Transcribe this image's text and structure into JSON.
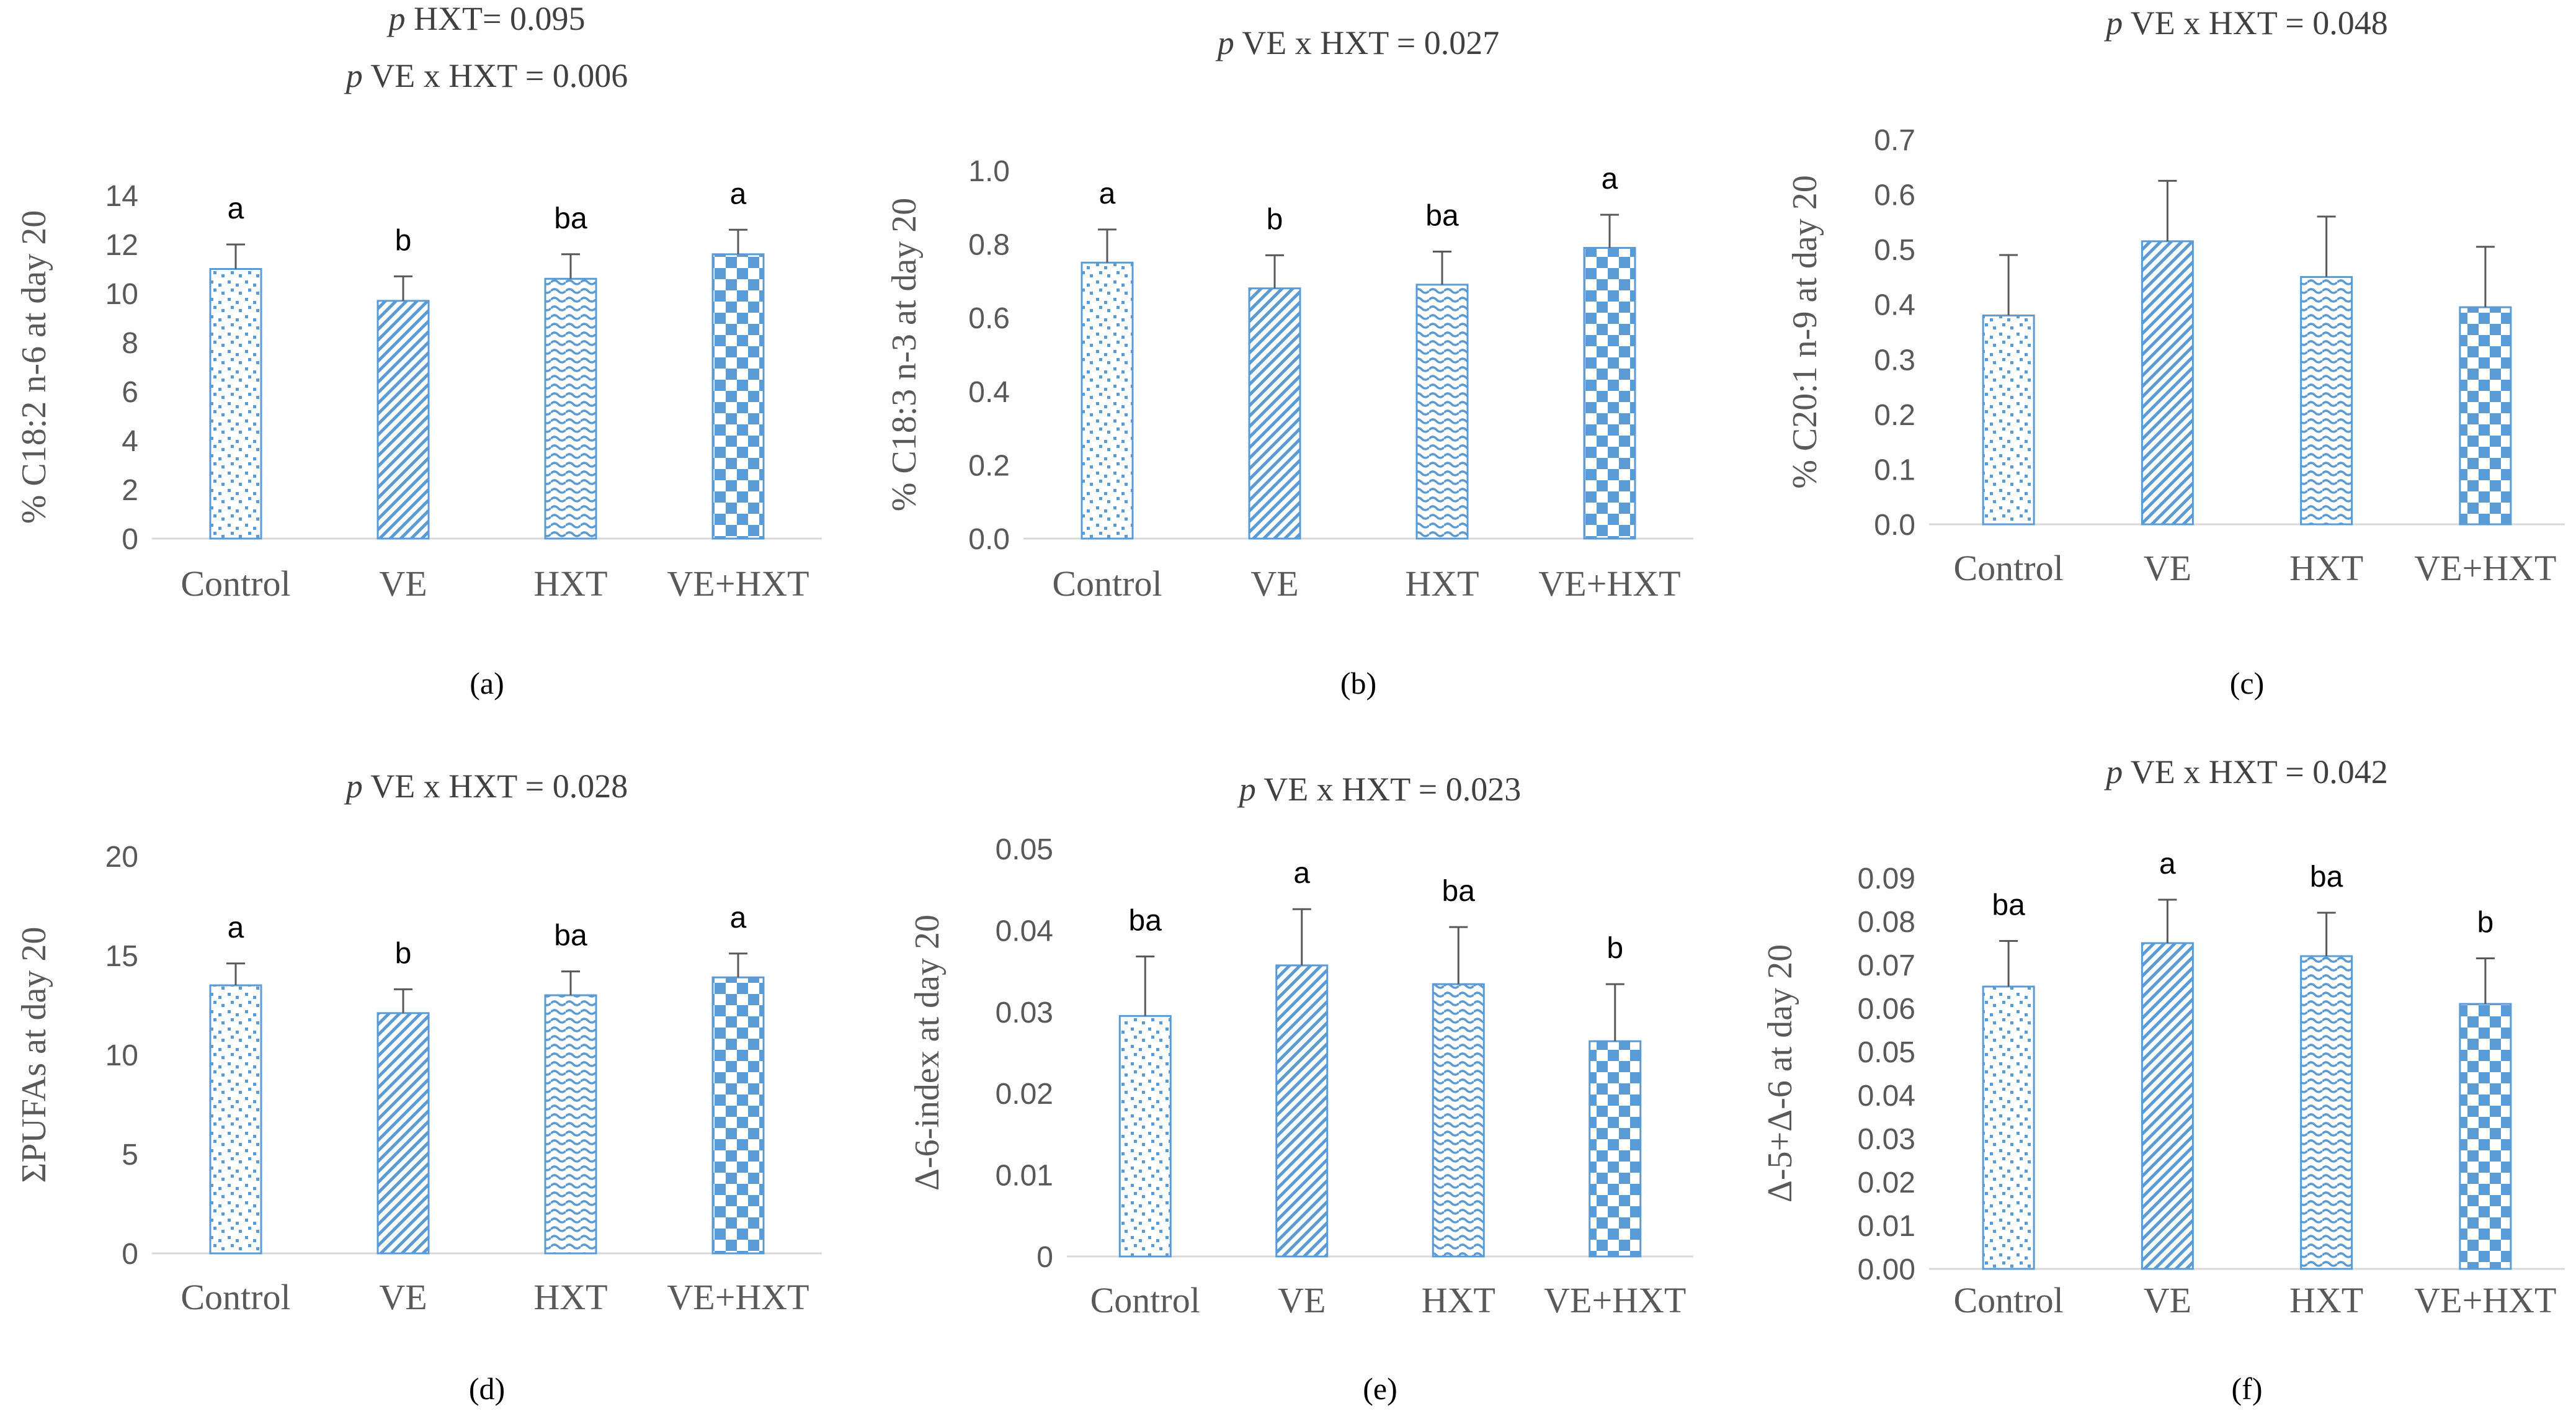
{
  "colors": {
    "bar_stroke": "#5b9bd5",
    "bar_fill": "#5b9bd5",
    "axis": "#d9d9d9",
    "text": "#595959",
    "title": "#404040"
  },
  "legend_patterns": [
    "dots-icon",
    "diagonal-stripes-icon",
    "wave-icon",
    "checkerboard-icon"
  ],
  "chart_data": [
    {
      "type": "bar",
      "panel_label": "(a)",
      "title_lines": [
        {
          "p": "p",
          "rest": " HXT= 0.095"
        },
        {
          "p": "p",
          "rest": " VE x HXT = 0.006"
        }
      ],
      "categories": [
        "Control",
        "VE",
        "HXT",
        "VE+HXT"
      ],
      "values": [
        11.0,
        9.7,
        10.6,
        11.6
      ],
      "errors": [
        1.0,
        1.0,
        1.0,
        1.0
      ],
      "letters": [
        "a",
        "b",
        "ba",
        "a"
      ],
      "ylabel": "% C18:2 n-6 at day 20",
      "ylim": [
        0,
        14
      ],
      "yticks": [
        "0",
        "2",
        "4",
        "6",
        "8",
        "10",
        "12",
        "14"
      ]
    },
    {
      "type": "bar",
      "panel_label": "(b)",
      "title_lines": [
        {
          "p": "p",
          "rest": " VE x HXT = 0.027"
        }
      ],
      "categories": [
        "Control",
        "VE",
        "HXT",
        "VE+HXT"
      ],
      "values": [
        0.75,
        0.68,
        0.69,
        0.79
      ],
      "errors": [
        0.09,
        0.09,
        0.09,
        0.09
      ],
      "letters": [
        "a",
        "b",
        "ba",
        "a"
      ],
      "ylabel": "% C18:3 n-3 at day 20",
      "ylim": [
        0,
        1.0
      ],
      "yticks": [
        "0.0",
        "0.2",
        "0.4",
        "0.6",
        "0.8",
        "1.0"
      ]
    },
    {
      "type": "bar",
      "panel_label": "(c)",
      "title_lines": [
        {
          "p": "p",
          "rest": " VE x HXT = 0.048"
        }
      ],
      "categories": [
        "Control",
        "VE",
        "HXT",
        "VE+HXT"
      ],
      "values": [
        0.38,
        0.515,
        0.45,
        0.395
      ],
      "errors": [
        0.11,
        0.11,
        0.11,
        0.11
      ],
      "letters": [
        "",
        "",
        "",
        ""
      ],
      "ylabel": "% C20:1 n-9 at day 20",
      "ylim": [
        0,
        0.7
      ],
      "yticks": [
        "0.0",
        "0.1",
        "0.2",
        "0.3",
        "0.4",
        "0.5",
        "0.6",
        "0.7"
      ]
    },
    {
      "type": "bar",
      "panel_label": "(d)",
      "title_lines": [
        {
          "p": "p",
          "rest": " VE x HXT = 0.028"
        }
      ],
      "categories": [
        "Control",
        "VE",
        "HXT",
        "VE+HXT"
      ],
      "values": [
        13.5,
        12.1,
        13.0,
        13.9
      ],
      "errors": [
        1.1,
        1.2,
        1.2,
        1.2
      ],
      "letters": [
        "a",
        "b",
        "ba",
        "a"
      ],
      "ylabel": "ΣPUFAs at day 20",
      "ylim": [
        0,
        20
      ],
      "yticks": [
        "0",
        "5",
        "10",
        "15",
        "20"
      ]
    },
    {
      "type": "bar",
      "panel_label": "(e)",
      "title_lines": [
        {
          "p": "p",
          "rest": " VE x HXT = 0.023"
        }
      ],
      "categories": [
        "Control",
        "VE",
        "HXT",
        "VE+HXT"
      ],
      "values": [
        0.0295,
        0.0357,
        0.0334,
        0.0264
      ],
      "errors": [
        0.0073,
        0.0069,
        0.007,
        0.007
      ],
      "letters": [
        "ba",
        "a",
        "ba",
        "b"
      ],
      "ylabel": "Δ-6-index at day 20",
      "ylim": [
        0,
        0.05
      ],
      "yticks": [
        "0",
        "0.01",
        "0.02",
        "0.03",
        "0.04",
        "0.05"
      ]
    },
    {
      "type": "bar",
      "panel_label": "(f)",
      "title_lines": [
        {
          "p": "p",
          "rest": " VE x HXT = 0.042"
        }
      ],
      "categories": [
        "Control",
        "VE",
        "HXT",
        "VE+HXT"
      ],
      "values": [
        0.065,
        0.075,
        0.072,
        0.061
      ],
      "errors": [
        0.0105,
        0.01,
        0.01,
        0.0105
      ],
      "letters": [
        "ba",
        "a",
        "ba",
        "b"
      ],
      "ylabel": "Δ-5+Δ-6 at day 20",
      "ylim": [
        0,
        0.09
      ],
      "yticks": [
        "0.00",
        "0.01",
        "0.02",
        "0.03",
        "0.04",
        "0.05",
        "0.06",
        "0.07",
        "0.08",
        "0.09"
      ]
    }
  ]
}
